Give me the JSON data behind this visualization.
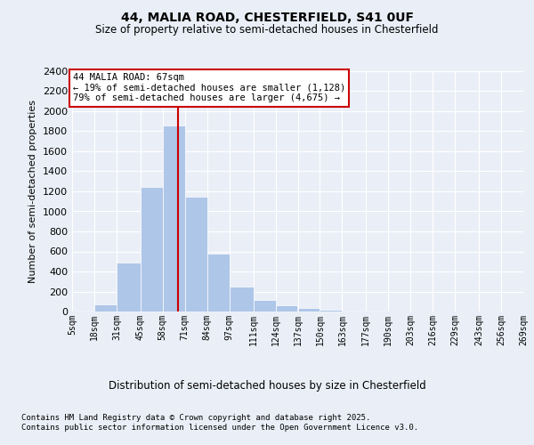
{
  "title": "44, MALIA ROAD, CHESTERFIELD, S41 0UF",
  "subtitle": "Size of property relative to semi-detached houses in Chesterfield",
  "xlabel": "Distribution of semi-detached houses by size in Chesterfield",
  "ylabel": "Number of semi-detached properties",
  "footer_line1": "Contains HM Land Registry data © Crown copyright and database right 2025.",
  "footer_line2": "Contains public sector information licensed under the Open Government Licence v3.0.",
  "annotation_title": "44 MALIA ROAD: 67sqm",
  "annotation_line2": "← 19% of semi-detached houses are smaller (1,128)",
  "annotation_line3": "79% of semi-detached houses are larger (4,675) →",
  "property_size": 67,
  "bin_edges": [
    5,
    18,
    31,
    45,
    58,
    71,
    84,
    97,
    111,
    124,
    137,
    150,
    163,
    177,
    190,
    203,
    216,
    229,
    243,
    256,
    269
  ],
  "bin_labels": [
    "5sqm",
    "18sqm",
    "31sqm",
    "45sqm",
    "58sqm",
    "71sqm",
    "84sqm",
    "97sqm",
    "111sqm",
    "124sqm",
    "137sqm",
    "150sqm",
    "163sqm",
    "177sqm",
    "190sqm",
    "203sqm",
    "216sqm",
    "229sqm",
    "243sqm",
    "256sqm",
    "269sqm"
  ],
  "bar_heights": [
    10,
    75,
    490,
    1240,
    1860,
    1150,
    580,
    245,
    120,
    65,
    35,
    18,
    8,
    5,
    3,
    2,
    1,
    1,
    0,
    0
  ],
  "bar_color": "#aec6e8",
  "bar_edgecolor": "#aec6e8",
  "vline_x": 67,
  "vline_color": "#cc0000",
  "bg_color": "#eaeff7",
  "plot_bg_color": "#eaeff7",
  "grid_color": "#ffffff",
  "annotation_box_color": "#ffffff",
  "annotation_box_edgecolor": "#cc0000",
  "ylim": [
    0,
    2400
  ],
  "yticks": [
    0,
    200,
    400,
    600,
    800,
    1000,
    1200,
    1400,
    1600,
    1800,
    2000,
    2200,
    2400
  ]
}
